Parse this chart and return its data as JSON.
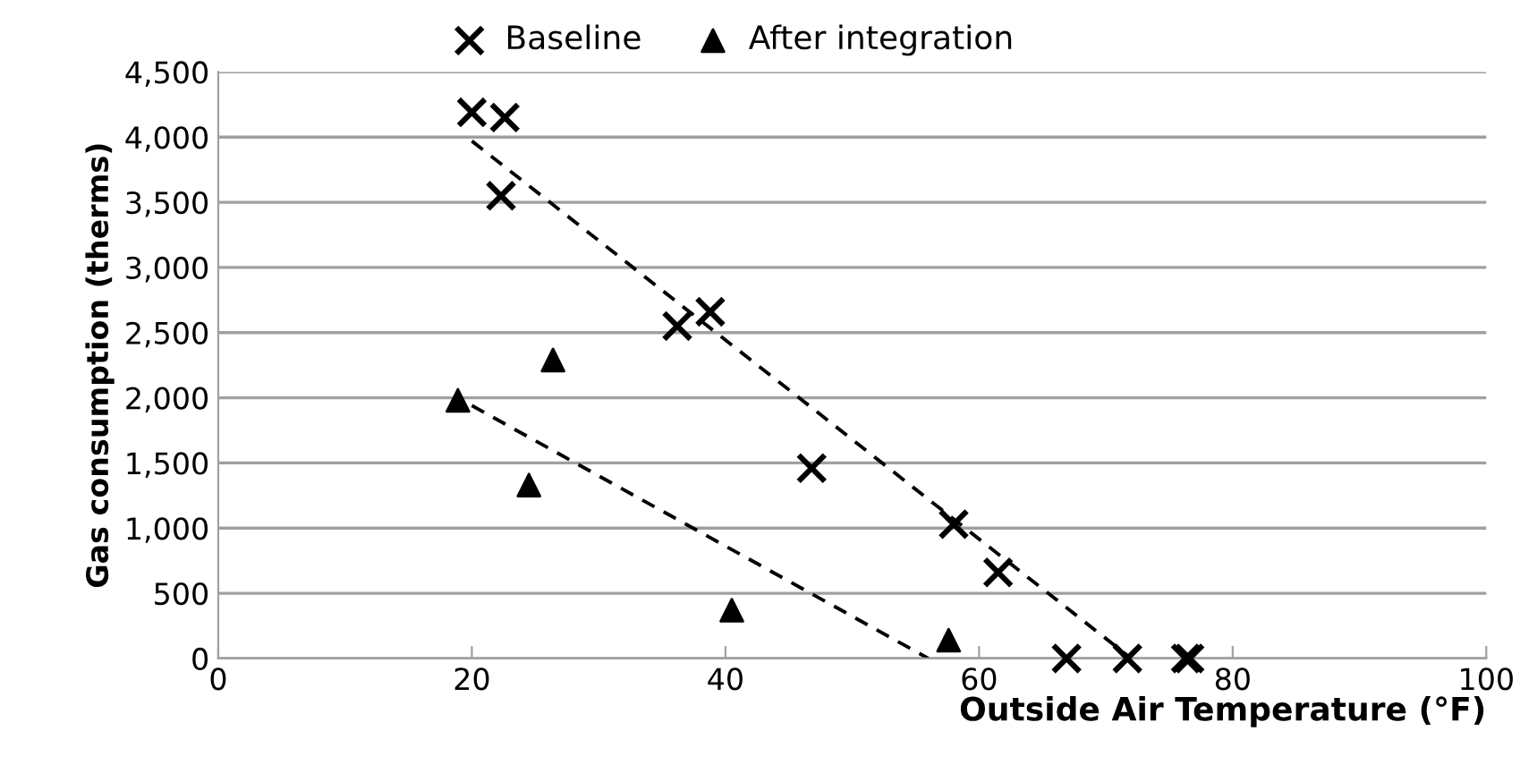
{
  "chart_data": {
    "type": "scatter",
    "xlabel": "Outside Air Temperature (°F)",
    "ylabel": "Gas consumption (therms)",
    "xlim": [
      0,
      100
    ],
    "xticks": [
      0,
      20,
      40,
      60,
      80,
      100
    ],
    "ylim": [
      0,
      4500
    ],
    "yticks": [
      0,
      {
        "value": 500,
        "label": "500"
      },
      {
        "value": 1000,
        "label": "1,000"
      },
      {
        "value": 1500,
        "label": "1,500"
      },
      {
        "value": 2000,
        "label": "2,000"
      },
      {
        "value": 2500,
        "label": "2,500"
      },
      {
        "value": 3000,
        "label": "3,000"
      },
      {
        "value": 3500,
        "label": "3,500"
      },
      {
        "value": 4000,
        "label": "4,000"
      },
      {
        "value": 4500,
        "label": "4,500"
      }
    ],
    "grid": "y",
    "legend": "top",
    "series": [
      {
        "name": "Baseline",
        "marker": "cross",
        "color": "#000000",
        "x": [
          20.0,
          22.6,
          22.3,
          36.2,
          38.8,
          46.8,
          58.0,
          61.5,
          66.9,
          71.7,
          76.3,
          76.6
        ],
        "values": [
          4190,
          4150,
          3550,
          2550,
          2660,
          1460,
          1030,
          660,
          0,
          0,
          0,
          0
        ]
      },
      {
        "name": "After integration",
        "marker": "triangle",
        "color": "#000000",
        "x": [
          18.9,
          24.5,
          26.4,
          40.5,
          57.6
        ],
        "values": [
          1980,
          1330,
          2290,
          370,
          140
        ]
      },
      {
        "type": "line",
        "line_style": "dashed",
        "marker": "none",
        "color": "#000000",
        "x": [
          20,
          72
        ],
        "values": [
          3970,
          0
        ]
      },
      {
        "type": "line",
        "line_style": "dashed",
        "marker": "none",
        "color": "#000000",
        "x": [
          20,
          56
        ],
        "values": [
          1940,
          0
        ]
      }
    ]
  }
}
